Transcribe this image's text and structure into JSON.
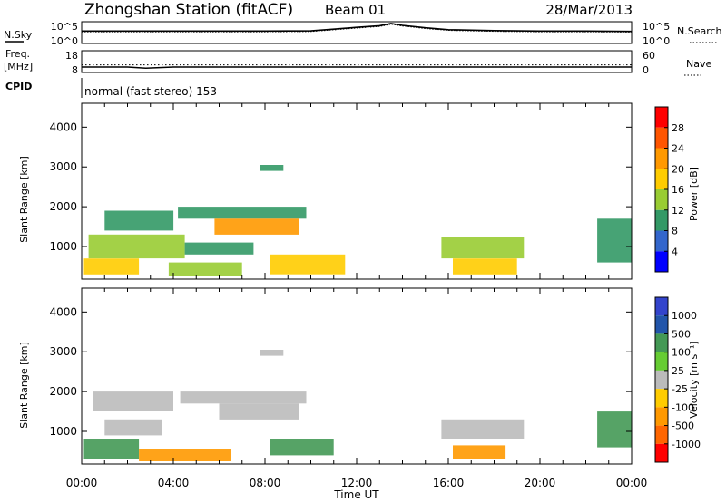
{
  "header": {
    "station": "Zhongshan Station (fitACF)",
    "beam": "Beam 01",
    "date": "28/Mar/2013"
  },
  "strip1": {
    "left_label": "N.Sky",
    "left_ticks": [
      "10^5",
      "10^0"
    ],
    "right_ticks": [
      "10^5",
      "10^0"
    ],
    "right_label": "N.Search"
  },
  "strip2": {
    "left_label_1": "Freq.",
    "left_label_2": "[MHz]",
    "left_ticks": [
      "18",
      "8"
    ],
    "right_ticks": [
      "60",
      "0"
    ],
    "right_label": "Nave"
  },
  "cpid": {
    "label": "CPID",
    "mode": "normal (fast stereo) 153"
  },
  "x_axis": {
    "ticks": [
      "00:00",
      "04:00",
      "08:00",
      "12:00",
      "16:00",
      "20:00",
      "00:00"
    ],
    "label": "Time UT"
  },
  "colorbars": {
    "power": {
      "label": "Power [dB]",
      "ticks": [
        "28",
        "24",
        "20",
        "16",
        "12",
        "8",
        "4"
      ],
      "colors": [
        "#ff0000",
        "#ff5500",
        "#ff9900",
        "#ffcc00",
        "#99cc33",
        "#339966",
        "#3366cc",
        "#0000ff"
      ]
    },
    "velocity": {
      "label": "Velocity [m s⁻¹]",
      "ticks": [
        "1000",
        "500",
        "100",
        "25",
        "-25",
        "-100",
        "-500",
        "-1000"
      ],
      "colors": [
        "#3344cc",
        "#2255aa",
        "#449955",
        "#66cc33",
        "#bbbbbb",
        "#ffcc00",
        "#ff9900",
        "#ff6600",
        "#ff0000"
      ]
    }
  },
  "chart_data": [
    {
      "type": "line",
      "title": "N.Sky / N.Search",
      "xlim": [
        0,
        24
      ],
      "ylim_log10": [
        0,
        5
      ],
      "series": [
        {
          "x": [
            0,
            2,
            4,
            6,
            8,
            10,
            11,
            12,
            13,
            13.5,
            14,
            15,
            16,
            18,
            20,
            22,
            24
          ],
          "y": [
            700,
            700,
            700,
            700,
            700,
            800,
            2000,
            5000,
            12000,
            40000,
            15000,
            4000,
            1500,
            900,
            700,
            700,
            600
          ]
        }
      ]
    },
    {
      "type": "scatter",
      "title": "Freq. / Nave",
      "xlim": [
        0,
        24
      ],
      "ylim": [
        8,
        18
      ],
      "series": [
        {
          "x": [
            0,
            2,
            2.8,
            4,
            8,
            12,
            16,
            20,
            24
          ],
          "y": [
            10.5,
            10.5,
            10.0,
            10.5,
            10.5,
            10.5,
            10.5,
            10.5,
            10.5
          ]
        },
        {
          "x": [
            0,
            4,
            8,
            12,
            16,
            20,
            24
          ],
          "y": [
            11.5,
            11.5,
            11.5,
            11.5,
            11.5,
            11.5,
            11.5
          ]
        }
      ]
    },
    {
      "type": "heatmap",
      "xlim": [
        0,
        24
      ],
      "ylim": [
        180,
        4600
      ],
      "ylabel": "Slant Range [km]",
      "ytick_labels": [
        "1000",
        "2000",
        "3000",
        "4000"
      ],
      "regions": [
        {
          "x": [
            0.1,
            2.5
          ],
          "y": [
            300,
            700
          ],
          "v": 18
        },
        {
          "x": [
            0.3,
            4.5
          ],
          "y": [
            700,
            1300
          ],
          "v": 12
        },
        {
          "x": [
            1.0,
            4.0
          ],
          "y": [
            1400,
            1900
          ],
          "v": 8
        },
        {
          "x": [
            3.8,
            7.0
          ],
          "y": [
            250,
            600
          ],
          "v": 14
        },
        {
          "x": [
            4.5,
            7.5
          ],
          "y": [
            800,
            1100
          ],
          "v": 10
        },
        {
          "x": [
            4.2,
            9.8
          ],
          "y": [
            1700,
            2000
          ],
          "v": 8
        },
        {
          "x": [
            5.8,
            9.5
          ],
          "y": [
            1300,
            1700
          ],
          "v": 22
        },
        {
          "x": [
            7.8,
            8.8
          ],
          "y": [
            2900,
            3050
          ],
          "v": 8
        },
        {
          "x": [
            8.2,
            11.5
          ],
          "y": [
            300,
            800
          ],
          "v": 18
        },
        {
          "x": [
            15.7,
            19.3
          ],
          "y": [
            700,
            1250
          ],
          "v": 12
        },
        {
          "x": [
            16.2,
            19.0
          ],
          "y": [
            300,
            700
          ],
          "v": 16
        },
        {
          "x": [
            22.5,
            24.0
          ],
          "y": [
            600,
            1700
          ],
          "v": 10
        }
      ]
    },
    {
      "type": "heatmap",
      "xlim": [
        0,
        24
      ],
      "ylim": [
        180,
        4600
      ],
      "ylabel": "Slant Range [km]",
      "ytick_labels": [
        "1000",
        "2000",
        "3000",
        "4000"
      ],
      "regions": [
        {
          "x": [
            0.1,
            2.5
          ],
          "y": [
            300,
            800
          ],
          "v": 300
        },
        {
          "x": [
            0.5,
            4.0
          ],
          "y": [
            1500,
            2000
          ],
          "v": 0
        },
        {
          "x": [
            1.0,
            3.5
          ],
          "y": [
            900,
            1300
          ],
          "v": 0
        },
        {
          "x": [
            2.5,
            6.5
          ],
          "y": [
            250,
            550
          ],
          "v": -300
        },
        {
          "x": [
            4.3,
            9.8
          ],
          "y": [
            1700,
            2000
          ],
          "v": 0
        },
        {
          "x": [
            6.0,
            9.5
          ],
          "y": [
            1300,
            1700
          ],
          "v": 0
        },
        {
          "x": [
            7.8,
            8.8
          ],
          "y": [
            2900,
            3050
          ],
          "v": 0
        },
        {
          "x": [
            8.2,
            11.0
          ],
          "y": [
            400,
            800
          ],
          "v": 150
        },
        {
          "x": [
            15.7,
            19.3
          ],
          "y": [
            800,
            1300
          ],
          "v": 0
        },
        {
          "x": [
            16.2,
            18.5
          ],
          "y": [
            300,
            650
          ],
          "v": -150
        },
        {
          "x": [
            22.5,
            24.0
          ],
          "y": [
            600,
            1500
          ],
          "v": 300
        }
      ]
    }
  ]
}
